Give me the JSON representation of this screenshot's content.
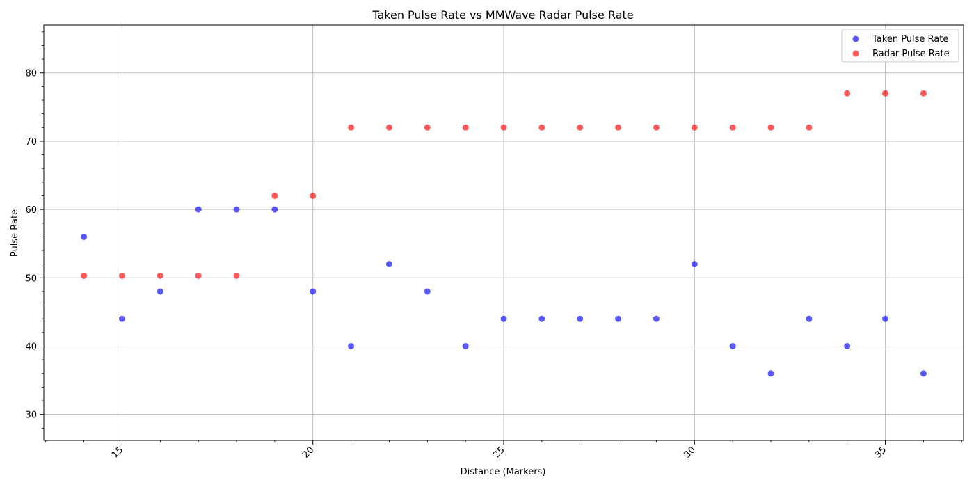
{
  "chart_data": {
    "type": "scatter",
    "title": "Taken Pulse Rate vs MMWave Radar Pulse Rate",
    "xlabel": "Distance (Markers)",
    "ylabel": "Pulse Rate",
    "xlim": [
      12.95,
      37.05
    ],
    "ylim": [
      26.2,
      87.0
    ],
    "xticks": [
      15,
      20,
      25,
      30,
      35
    ],
    "yticks": [
      30,
      40,
      50,
      60,
      70,
      80
    ],
    "grid": true,
    "legend_position": "top-right",
    "x": [
      14,
      15,
      16,
      17,
      18,
      19,
      20,
      21,
      22,
      23,
      24,
      25,
      26,
      27,
      28,
      29,
      30,
      31,
      32,
      33,
      34,
      35,
      36
    ],
    "series": [
      {
        "name": "Taken Pulse Rate",
        "color": "#0000ff",
        "values": [
          56,
          44,
          48,
          60,
          60,
          60,
          48,
          40,
          52,
          48,
          40,
          44,
          44,
          44,
          44,
          44,
          52,
          40,
          36,
          44,
          40,
          44,
          36
        ]
      },
      {
        "name": "Radar Pulse Rate",
        "color": "#ff0000",
        "values": [
          50.3,
          50.3,
          50.3,
          50.3,
          50.3,
          62,
          62,
          72,
          72,
          72,
          72,
          72,
          72,
          72,
          72,
          72,
          72,
          72,
          72,
          72,
          77,
          77,
          77
        ]
      }
    ]
  }
}
